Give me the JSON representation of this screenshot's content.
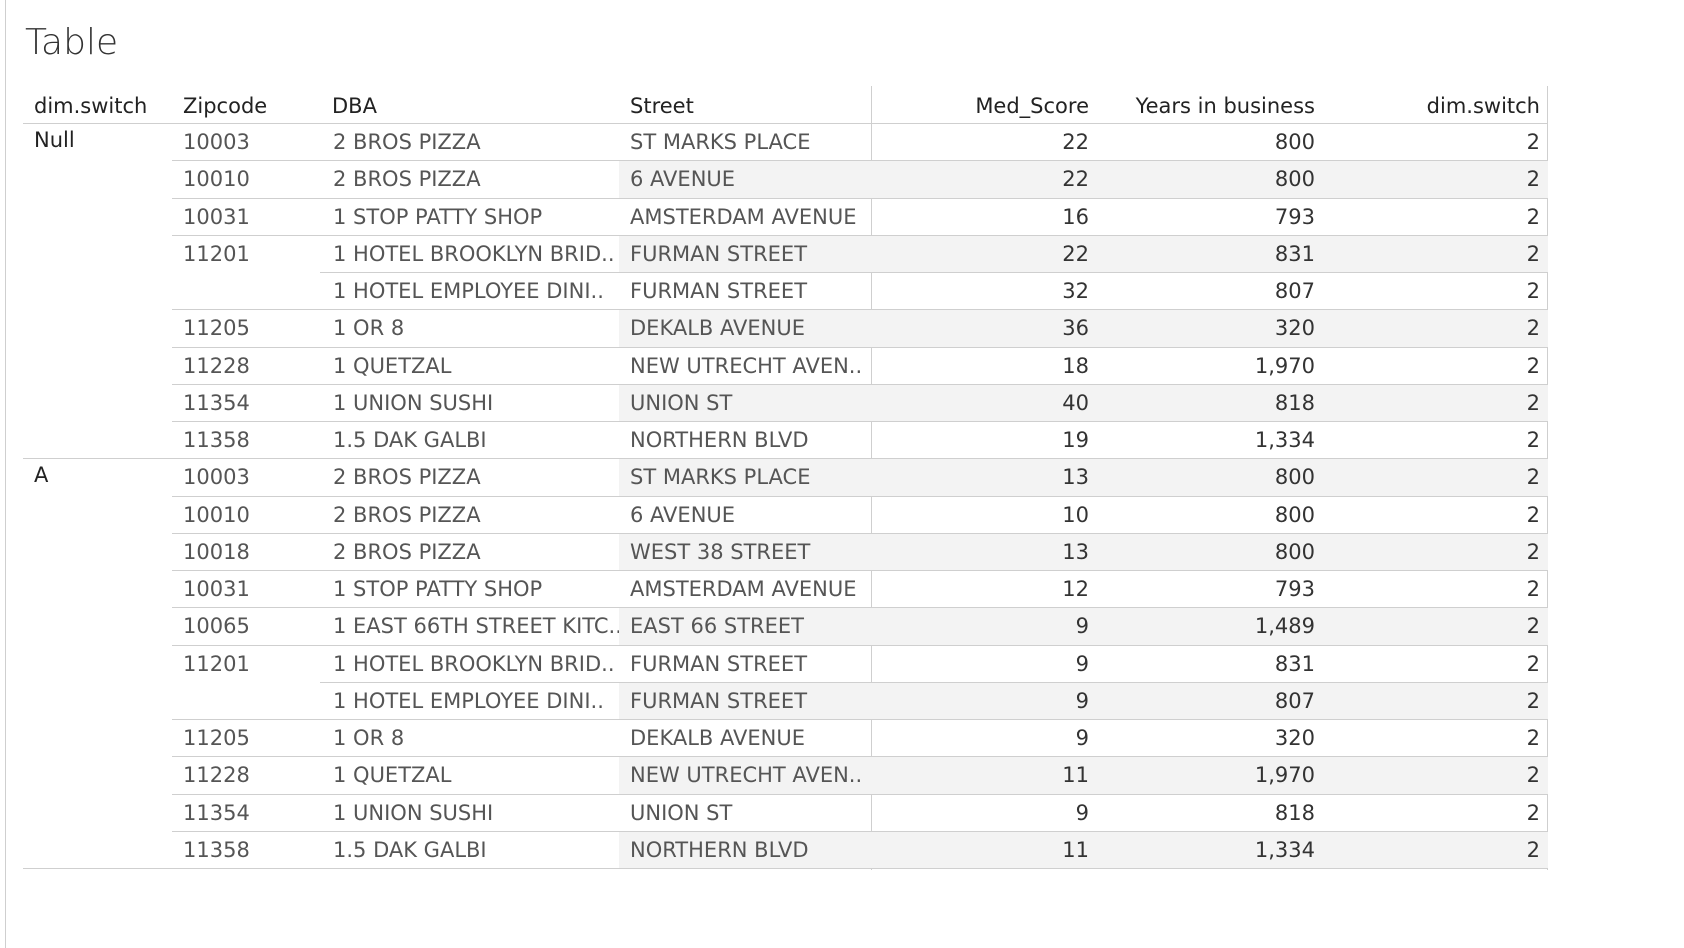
{
  "title": "Table",
  "headers": {
    "dim_switch": "dim.switch",
    "zipcode": "Zipcode",
    "dba": "DBA",
    "street": "Street",
    "med_score": "Med_Score",
    "years": "Years in business",
    "dim_switch2": "dim.switch"
  },
  "groups": [
    {
      "label": "Null",
      "rows": [
        {
          "zip": "10003",
          "dba": "2 BROS PIZZA",
          "street": "ST MARKS PLACE",
          "med": "22",
          "years": "800",
          "dim": "2"
        },
        {
          "zip": "10010",
          "dba": "2 BROS PIZZA",
          "street": "6 AVENUE",
          "med": "22",
          "years": "800",
          "dim": "2"
        },
        {
          "zip": "10031",
          "dba": "1 STOP PATTY SHOP",
          "street": "AMSTERDAM AVENUE",
          "med": "16",
          "years": "793",
          "dim": "2"
        },
        {
          "zip": "11201",
          "dba": "1 HOTEL BROOKLYN BRID..",
          "street": "FURMAN STREET",
          "med": "22",
          "years": "831",
          "dim": "2"
        },
        {
          "zip": "",
          "dba": "1 HOTEL EMPLOYEE DINI..",
          "street": "FURMAN STREET",
          "med": "32",
          "years": "807",
          "dim": "2"
        },
        {
          "zip": "11205",
          "dba": "1 OR 8",
          "street": "DEKALB AVENUE",
          "med": "36",
          "years": "320",
          "dim": "2"
        },
        {
          "zip": "11228",
          "dba": "1 QUETZAL",
          "street": "NEW UTRECHT AVEN..",
          "med": "18",
          "years": "1,970",
          "dim": "2"
        },
        {
          "zip": "11354",
          "dba": "1 UNION SUSHI",
          "street": "UNION ST",
          "med": "40",
          "years": "818",
          "dim": "2"
        },
        {
          "zip": "11358",
          "dba": "1.5 DAK GALBI",
          "street": "NORTHERN BLVD",
          "med": "19",
          "years": "1,334",
          "dim": "2"
        }
      ]
    },
    {
      "label": "A",
      "rows": [
        {
          "zip": "10003",
          "dba": "2 BROS PIZZA",
          "street": "ST MARKS PLACE",
          "med": "13",
          "years": "800",
          "dim": "2"
        },
        {
          "zip": "10010",
          "dba": "2 BROS PIZZA",
          "street": "6 AVENUE",
          "med": "10",
          "years": "800",
          "dim": "2"
        },
        {
          "zip": "10018",
          "dba": "2 BROS PIZZA",
          "street": "WEST   38 STREET",
          "med": "13",
          "years": "800",
          "dim": "2"
        },
        {
          "zip": "10031",
          "dba": "1 STOP PATTY SHOP",
          "street": "AMSTERDAM AVENUE",
          "med": "12",
          "years": "793",
          "dim": "2"
        },
        {
          "zip": "10065",
          "dba": "1 EAST 66TH STREET KITC..",
          "street": "EAST   66 STREET",
          "med": "9",
          "years": "1,489",
          "dim": "2"
        },
        {
          "zip": "11201",
          "dba": "1 HOTEL BROOKLYN BRID..",
          "street": "FURMAN STREET",
          "med": "9",
          "years": "831",
          "dim": "2"
        },
        {
          "zip": "",
          "dba": "1 HOTEL EMPLOYEE DINI..",
          "street": "FURMAN STREET",
          "med": "9",
          "years": "807",
          "dim": "2"
        },
        {
          "zip": "11205",
          "dba": "1 OR 8",
          "street": "DEKALB AVENUE",
          "med": "9",
          "years": "320",
          "dim": "2"
        },
        {
          "zip": "11228",
          "dba": "1 QUETZAL",
          "street": "NEW UTRECHT AVEN..",
          "med": "11",
          "years": "1,970",
          "dim": "2"
        },
        {
          "zip": "11354",
          "dba": "1 UNION SUSHI",
          "street": "UNION ST",
          "med": "9",
          "years": "818",
          "dim": "2"
        },
        {
          "zip": "11358",
          "dba": "1.5 DAK GALBI",
          "street": "NORTHERN BLVD",
          "med": "11",
          "years": "1,334",
          "dim": "2"
        }
      ]
    }
  ]
}
